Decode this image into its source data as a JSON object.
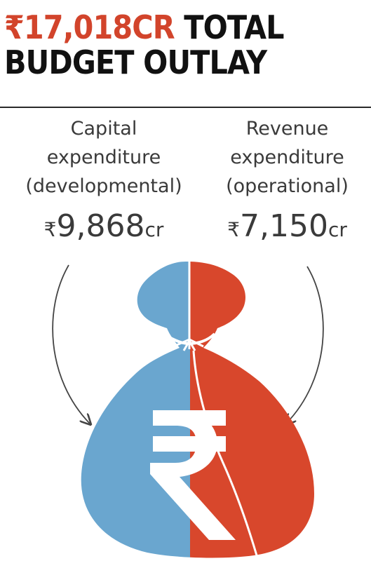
{
  "headline": {
    "amount": "₹17,018CR",
    "rest": "TOTAL",
    "line2": "BUDGET OUTLAY"
  },
  "capital": {
    "line1": "Capital",
    "line2": "expenditure",
    "line3": "(developmental)",
    "currency": "₹",
    "value": "9,868",
    "unit": "cr"
  },
  "revenue": {
    "line1": "Revenue",
    "line2": "expenditure",
    "line3": "(operational)",
    "currency": "₹",
    "value": "7,150",
    "unit": "cr"
  },
  "colors": {
    "accent": "#d2442b",
    "capital_fill": "#6aa6cf",
    "revenue_fill": "#d8472c"
  },
  "icons": {
    "bag": "money-bag-icon",
    "symbol": "rupee-symbol-icon"
  }
}
